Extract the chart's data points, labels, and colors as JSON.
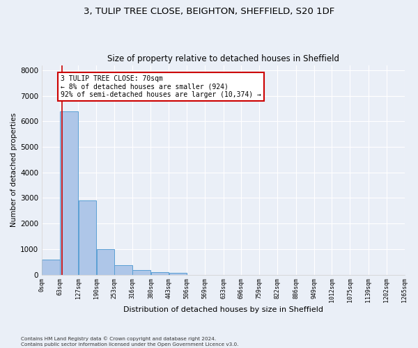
{
  "title1": "3, TULIP TREE CLOSE, BEIGHTON, SHEFFIELD, S20 1DF",
  "title2": "Size of property relative to detached houses in Sheffield",
  "xlabel": "Distribution of detached houses by size in Sheffield",
  "ylabel": "Number of detached properties",
  "footnote": "Contains HM Land Registry data © Crown copyright and database right 2024.\nContains public sector information licensed under the Open Government Licence v3.0.",
  "bin_edges": [
    0,
    63,
    127,
    190,
    253,
    316,
    380,
    443,
    506,
    569,
    633,
    696,
    759,
    822,
    886,
    949,
    1012,
    1075,
    1139,
    1202,
    1265
  ],
  "bin_labels": [
    "0sqm",
    "63sqm",
    "127sqm",
    "190sqm",
    "253sqm",
    "316sqm",
    "380sqm",
    "443sqm",
    "506sqm",
    "569sqm",
    "633sqm",
    "696sqm",
    "759sqm",
    "822sqm",
    "886sqm",
    "949sqm",
    "1012sqm",
    "1075sqm",
    "1139sqm",
    "1202sqm",
    "1265sqm"
  ],
  "bar_values": [
    600,
    6400,
    2900,
    1000,
    380,
    170,
    100,
    80,
    0,
    0,
    0,
    0,
    0,
    0,
    0,
    0,
    0,
    0,
    0,
    0
  ],
  "bar_color": "#aec6e8",
  "bar_edge_color": "#5a9fd4",
  "property_size": 70,
  "vline_color": "#cc0000",
  "annotation_text": "3 TULIP TREE CLOSE: 70sqm\n← 8% of detached houses are smaller (924)\n92% of semi-detached houses are larger (10,374) →",
  "annotation_box_color": "#ffffff",
  "annotation_box_edge": "#cc0000",
  "ylim": [
    0,
    8200
  ],
  "yticks": [
    0,
    1000,
    2000,
    3000,
    4000,
    5000,
    6000,
    7000,
    8000
  ],
  "bg_color": "#eaeff7",
  "grid_color": "#ffffff",
  "title1_fontsize": 9.5,
  "title2_fontsize": 8.5
}
